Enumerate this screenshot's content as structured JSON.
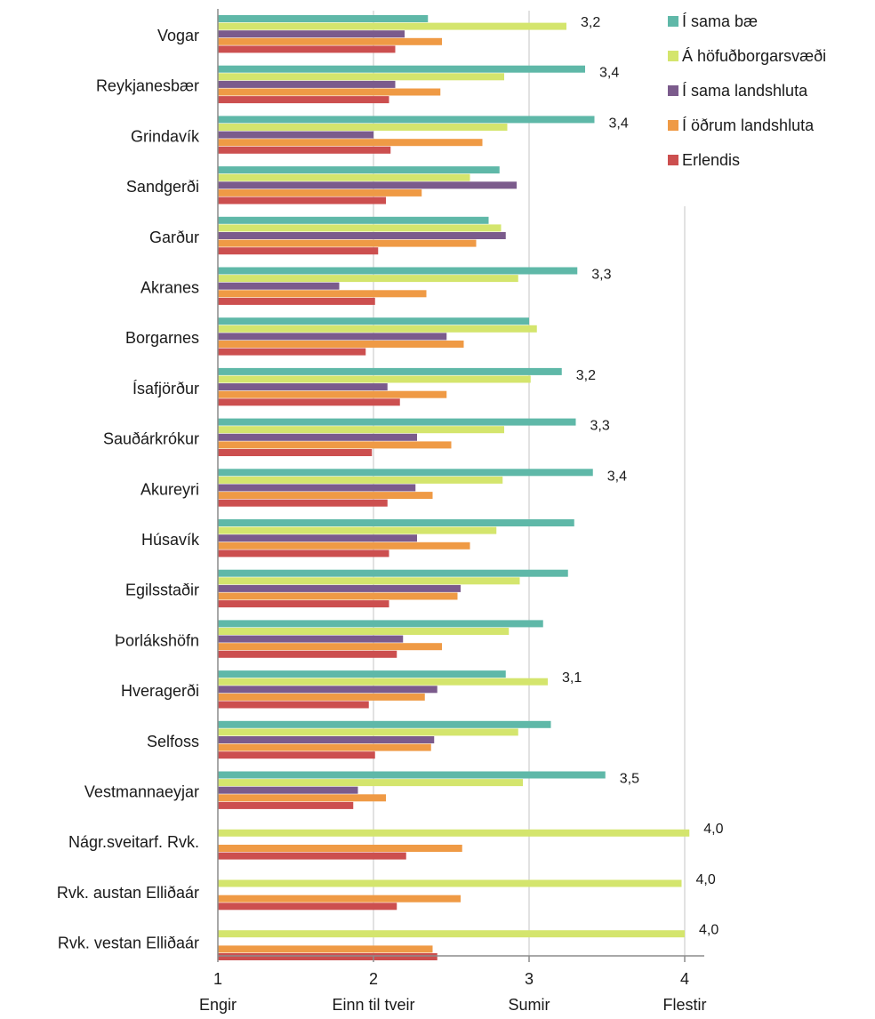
{
  "chart_data": {
    "type": "bar",
    "orientation": "horizontal",
    "categories": [
      "Vogar",
      "Reykjanesbær",
      "Grindavík",
      "Sandgerði",
      "Garður",
      "Akranes",
      "Borgarnes",
      "Ísafjörður",
      "Sauðárkrókur",
      "Akureyri",
      "Húsavík",
      "Egilsstaðir",
      "Þorlákshöfn",
      "Hveragerði",
      "Selfoss",
      "Vestmannaeyjar",
      "Nágr.sveitarf. Rvk.",
      "Rvk. austan Elliðaár",
      "Rvk. vestan Elliðaár"
    ],
    "series": [
      {
        "name": "Í sama bæ",
        "color": "#5fb8a8",
        "values": [
          2.35,
          3.36,
          3.42,
          2.81,
          2.74,
          3.31,
          3.0,
          3.21,
          3.3,
          3.41,
          3.29,
          3.25,
          3.09,
          2.85,
          3.14,
          3.49,
          null,
          null,
          null
        ]
      },
      {
        "name": "Á höfuðborgarsvæði",
        "color": "#d4e56d",
        "values": [
          3.24,
          2.84,
          2.86,
          2.62,
          2.82,
          2.93,
          3.05,
          3.01,
          2.84,
          2.83,
          2.79,
          2.94,
          2.87,
          3.12,
          2.93,
          2.96,
          4.03,
          3.98,
          4.0
        ]
      },
      {
        "name": "Í sama landshluta",
        "color": "#7b5b8c",
        "values": [
          2.2,
          2.14,
          2.0,
          2.92,
          2.85,
          1.78,
          2.47,
          2.09,
          2.28,
          2.27,
          2.28,
          2.56,
          2.19,
          2.41,
          2.39,
          1.9,
          null,
          null,
          null
        ]
      },
      {
        "name": "Í öðrum landshluta",
        "color": "#ef9a45",
        "values": [
          2.44,
          2.43,
          2.7,
          2.31,
          2.66,
          2.34,
          2.58,
          2.47,
          2.5,
          2.38,
          2.62,
          2.54,
          2.44,
          2.33,
          2.37,
          2.08,
          2.57,
          2.56,
          2.38
        ]
      },
      {
        "name": "Erlendis",
        "color": "#cc4f4f",
        "values": [
          2.14,
          2.1,
          2.11,
          2.08,
          2.03,
          2.01,
          1.95,
          2.17,
          1.99,
          2.09,
          2.1,
          2.1,
          2.15,
          1.97,
          2.01,
          1.87,
          2.21,
          2.15,
          2.41
        ]
      }
    ],
    "value_labels": [
      "3,2",
      "3,4",
      "3,4",
      "",
      "",
      "3,3",
      "",
      "3,2",
      "3,3",
      "3,4",
      "",
      "",
      "",
      "3,1",
      "",
      "3,5",
      "4,0",
      "4,0",
      "4,0"
    ],
    "x_ticks": [
      1,
      2,
      3,
      4
    ],
    "x_tick_labels": [
      "1",
      "2",
      "3",
      "4"
    ],
    "x_tick_categories": [
      "Engir",
      "Einn til tveir",
      "Sumir",
      "Flestir"
    ],
    "xlim": [
      1,
      4.1
    ],
    "grid": "vertical",
    "legend_position": "top-right",
    "title": "",
    "xlabel": "",
    "ylabel": ""
  }
}
